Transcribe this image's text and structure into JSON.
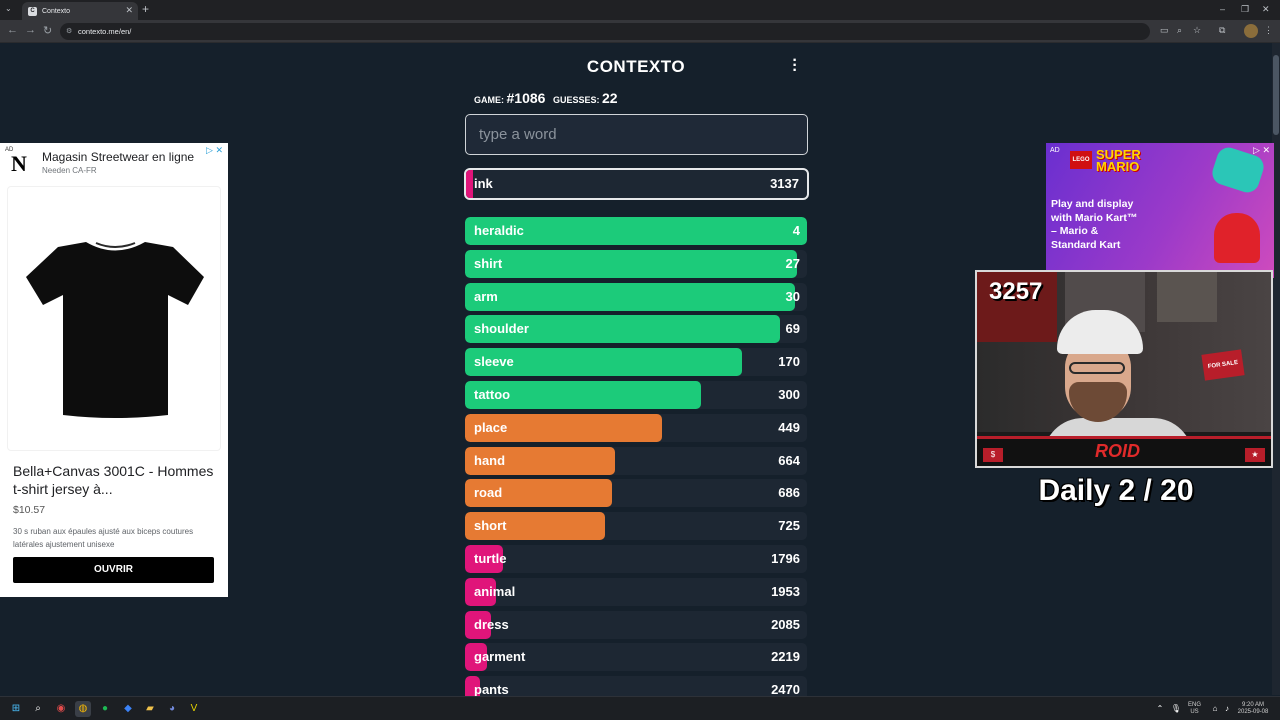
{
  "browser": {
    "tab_title": "Contexto",
    "url": "contexto.me/en/"
  },
  "game": {
    "brand": "CONTEXTO",
    "game_label": "GAME:",
    "game_number": "#1086",
    "guesses_label": "GUESSES:",
    "guesses_count": "22",
    "input_placeholder": "type a word",
    "current_guess": {
      "word": "ink",
      "rank": "3137"
    },
    "guesses": [
      {
        "word": "heraldic",
        "rank": "4",
        "color": "#1ccb7a",
        "fill": 1.0
      },
      {
        "word": "shirt",
        "rank": "27",
        "color": "#1ccb7a",
        "fill": 0.97
      },
      {
        "word": "arm",
        "rank": "30",
        "color": "#1ccb7a",
        "fill": 0.965
      },
      {
        "word": "shoulder",
        "rank": "69",
        "color": "#1ccb7a",
        "fill": 0.92
      },
      {
        "word": "sleeve",
        "rank": "170",
        "color": "#1ccb7a",
        "fill": 0.81
      },
      {
        "word": "tattoo",
        "rank": "300",
        "color": "#1ccb7a",
        "fill": 0.69
      },
      {
        "word": "place",
        "rank": "449",
        "color": "#e67a33",
        "fill": 0.575
      },
      {
        "word": "hand",
        "rank": "664",
        "color": "#e67a33",
        "fill": 0.44
      },
      {
        "word": "road",
        "rank": "686",
        "color": "#e67a33",
        "fill": 0.43
      },
      {
        "word": "short",
        "rank": "725",
        "color": "#e67a33",
        "fill": 0.41
      },
      {
        "word": "turtle",
        "rank": "1796",
        "color": "#e0157a",
        "fill": 0.11
      },
      {
        "word": "animal",
        "rank": "1953",
        "color": "#e0157a",
        "fill": 0.09
      },
      {
        "word": "dress",
        "rank": "2085",
        "color": "#e0157a",
        "fill": 0.075
      },
      {
        "word": "garment",
        "rank": "2219",
        "color": "#e0157a",
        "fill": 0.065
      },
      {
        "word": "pants",
        "rank": "2470",
        "color": "#e0157a",
        "fill": 0.045
      }
    ]
  },
  "ad_left": {
    "tag": "AD",
    "logo_letter": "N",
    "title": "Magasin Streetwear en ligne",
    "advertiser": "Needen CA-FR",
    "product": "Bella+Canvas 3001C - Hommes t-shirt jersey à...",
    "price": "$10.57",
    "description": "30 s ruban aux épaules ajusté aux biceps coutures latérales ajustement unisexe",
    "cta": "OUVRIR"
  },
  "ad_right": {
    "tag": "AD",
    "brand": "LEGO",
    "product_line_1": "SUPER",
    "product_line_2": "MARIO",
    "copy": "Play and display with Mario Kart™ – Mario & Standard Kart"
  },
  "stream": {
    "counter": "3257",
    "overlay_text": "Daily  2 / 20",
    "logo": "ROID",
    "sign": "FOR SALE"
  },
  "taskbar": {
    "lang_1": "ENG",
    "lang_2": "US",
    "time": "9:20 AM",
    "date": "2025-09-08"
  }
}
